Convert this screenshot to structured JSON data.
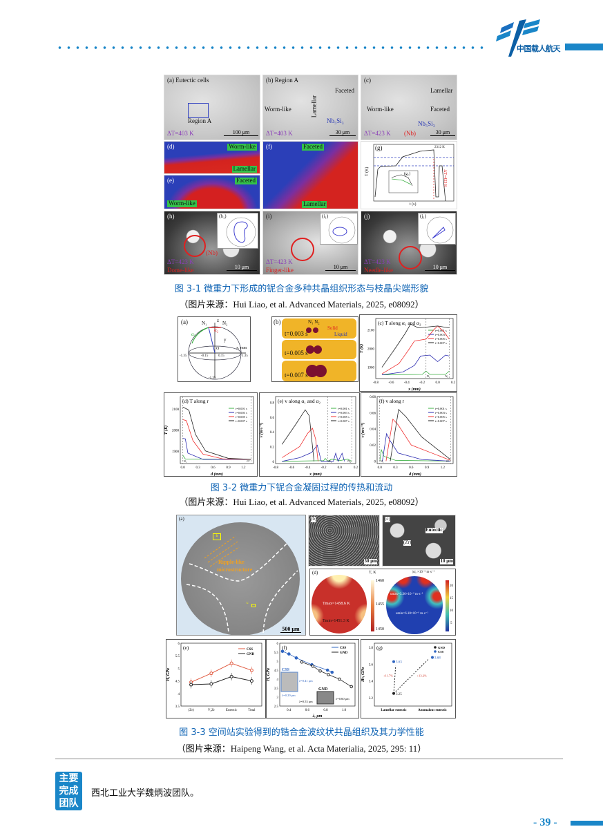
{
  "header": {
    "logo_text": "中国载人航天",
    "colors": {
      "accent": "#1a86c8"
    }
  },
  "fig1": {
    "caption": "图 3-1 微重力下形成的铌合金多种共晶组织形态与枝晶尖端形貌",
    "source": "（图片来源：Hui Liao, et al. Advanced Materials, 2025, e08092）",
    "a": {
      "label": "(a) Eutectic cells",
      "region": "Region A",
      "dt": "ΔT=403 K",
      "scale": "100 μm"
    },
    "b": {
      "label": "(b) Region A",
      "worm": "Worm-like",
      "lamellar": "Lamellar",
      "faceted": "Faceted",
      "phase": "Nb₅Si₃",
      "dt": "ΔT=403 K",
      "scale": "30 μm"
    },
    "c": {
      "label": "(c)",
      "worm": "Worm-like",
      "lamellar": "Lamellar",
      "faceted": "Faceted",
      "phase": "Nb₅Si₃",
      "nb": "(Nb)",
      "dt": "ΔT=423 K",
      "scale": "30 μm"
    },
    "d": {
      "label": "(d)",
      "t1": "Worm-like",
      "t2": "Lamellar"
    },
    "e": {
      "label": "(e)",
      "t1": "Faceted",
      "t2": "Worm-like"
    },
    "f": {
      "label": "(f)",
      "t1": "Faceted",
      "t2": "Lamellar"
    },
    "g": {
      "label": "(g)",
      "inset": "(g₁)",
      "xlabel": "t (s)",
      "ylabel": "T (K)",
      "dt": "ΔT=423 K",
      "tmax": "2312 K",
      "yticks": [
        "2400",
        "2200",
        "2000",
        "1800"
      ],
      "xticks": [
        "0",
        "10",
        "20",
        "30"
      ]
    },
    "h": {
      "label": "(h)",
      "inset": "(h₁)",
      "nb": "(Nb)",
      "dt": "ΔT=423 K",
      "shape": "Dome-like",
      "scale": "10 μm"
    },
    "i": {
      "label": "(i)",
      "inset": "(i₁)",
      "dt": "ΔT=423 K",
      "shape": "Finger-like",
      "scale": "10 μm"
    },
    "j": {
      "label": "(j)",
      "inset": "(j₁)",
      "dt": "ΔT=423 K",
      "shape": "Needle-like",
      "scale": "10 μm"
    }
  },
  "fig2": {
    "caption": "图 3-2 微重力下铌合金凝固过程的传热和流动",
    "source": "（图片来源：Hui Liao, et al. Advanced Materials, 2025, e08092）",
    "a": {
      "label": "(a)",
      "n1": "N₁",
      "n2": "N₂",
      "a1": "α₁",
      "a2": "α₂",
      "o": "O",
      "x": "x, mm",
      "y": "y",
      "z": "z",
      "ticks": [
        "-1.35",
        "-0.15",
        "0.15",
        "1.35",
        "-1.35"
      ]
    },
    "b": {
      "label": "(b)",
      "n": "N₁ N₂",
      "solid": "Solid",
      "liquid": "Liquid",
      "t1": "t=0.003 s",
      "t2": "t=0.005 s",
      "t3": "t=0.007 s"
    },
    "legend": [
      "t=0.001 s",
      "t=0.003 s",
      "t=0.005 s",
      "t=0.007 s"
    ],
    "colors": [
      "#3cb043",
      "#2a2ab0",
      "#f03030",
      "#222222"
    ],
    "chart_data": [
      {
        "type": "line",
        "title": "(c) T along α₁ and α₂",
        "xlabel": "x (mm)",
        "ylabel": "T (K)",
        "xlim": [
          -0.8,
          0.2
        ],
        "ylim": [
          1840,
          2160
        ],
        "xticks": [
          -0.8,
          -0.6,
          -0.4,
          -0.2,
          0.0,
          0.2
        ],
        "yticks": [
          1900,
          2000,
          2100
        ],
        "series": [
          {
            "name": "t=0.001 s",
            "points": [
              [
                -0.72,
                1860
              ],
              [
                -0.2,
                1862
              ],
              [
                -0.15,
                1880
              ],
              [
                -0.1,
                1862
              ],
              [
                0.1,
                1862
              ],
              [
                0.15,
                1880
              ]
            ]
          },
          {
            "name": "t=0.003 s",
            "points": [
              [
                -0.72,
                1860
              ],
              [
                -0.45,
                1875
              ],
              [
                -0.3,
                1910
              ],
              [
                -0.22,
                1960
              ],
              [
                -0.1,
                1965
              ],
              [
                0,
                1930
              ],
              [
                0.1,
                1965
              ],
              [
                0.15,
                1960
              ]
            ]
          },
          {
            "name": "t=0.005 s",
            "points": [
              [
                -0.72,
                1865
              ],
              [
                -0.5,
                1920
              ],
              [
                -0.38,
                1990
              ],
              [
                -0.3,
                2040
              ],
              [
                -0.15,
                2050
              ],
              [
                -0.05,
                2100
              ],
              [
                0,
                2120
              ],
              [
                0.08,
                2090
              ],
              [
                0.15,
                2050
              ]
            ]
          },
          {
            "name": "t=0.007 s",
            "points": [
              [
                -0.72,
                1900
              ],
              [
                -0.55,
                2000
              ],
              [
                -0.42,
                2080
              ],
              [
                -0.35,
                2130
              ],
              [
                -0.25,
                2110
              ],
              [
                0,
                2120
              ],
              [
                0.15,
                2110
              ]
            ]
          }
        ]
      },
      {
        "type": "line",
        "title": "(d) T along r",
        "xlabel": "d (mm)",
        "ylabel": "T (K)",
        "xlim": [
          -0.05,
          1.4
        ],
        "ylim": [
          1840,
          2160
        ],
        "xticks": [
          0.0,
          0.3,
          0.6,
          0.9,
          1.2
        ],
        "yticks": [
          1900,
          2000,
          2100
        ],
        "series": [
          {
            "name": "t=0.001 s",
            "points": [
              [
                0,
                1880
              ],
              [
                0.05,
                1862
              ],
              [
                1.35,
                1860
              ]
            ]
          },
          {
            "name": "t=0.003 s",
            "points": [
              [
                0,
                1960
              ],
              [
                0.05,
                1958
              ],
              [
                0.1,
                1890
              ],
              [
                0.4,
                1860
              ],
              [
                1.35,
                1860
              ]
            ]
          },
          {
            "name": "t=0.005 s",
            "points": [
              [
                0,
                2050
              ],
              [
                0.07,
                2045
              ],
              [
                0.2,
                1950
              ],
              [
                0.4,
                1885
              ],
              [
                0.8,
                1862
              ],
              [
                1.35,
                1860
              ]
            ]
          },
          {
            "name": "t=0.007 s",
            "points": [
              [
                0,
                2110
              ],
              [
                0.12,
                2095
              ],
              [
                0.25,
                1980
              ],
              [
                0.45,
                1900
              ],
              [
                0.9,
                1865
              ],
              [
                1.35,
                1860
              ]
            ]
          }
        ]
      },
      {
        "type": "line",
        "title": "(e) v along α₁ and α₂",
        "xlabel": "x (mm)",
        "ylabel": "v (m·s⁻¹)",
        "xlim": [
          -0.8,
          0.2
        ],
        "ylim": [
          -0.03,
          0.88
        ],
        "xticks": [
          -0.8,
          -0.6,
          -0.4,
          -0.2,
          0.0,
          0.2
        ],
        "yticks": [
          0.0,
          0.2,
          0.4,
          0.6,
          0.8
        ],
        "series": [
          {
            "name": "t=0.001 s",
            "points": [
              [
                -0.72,
                0
              ],
              [
                -0.2,
                0.01
              ],
              [
                -0.18,
                0.04
              ],
              [
                -0.15,
                0
              ],
              [
                -0.1,
                0.03
              ],
              [
                0,
                0.01
              ],
              [
                0.1,
                0.03
              ],
              [
                0.15,
                0
              ]
            ]
          },
          {
            "name": "t=0.003 s",
            "points": [
              [
                -0.72,
                0
              ],
              [
                -0.5,
                0.05
              ],
              [
                -0.35,
                0.12
              ],
              [
                -0.28,
                0.22
              ],
              [
                -0.23,
                0
              ],
              [
                -0.08,
                0
              ],
              [
                -0.05,
                0.11
              ],
              [
                -0.02,
                0
              ],
              [
                0.03,
                0.11
              ],
              [
                0.06,
                0
              ]
            ]
          },
          {
            "name": "t=0.005 s",
            "points": [
              [
                -0.72,
                0.05
              ],
              [
                -0.5,
                0.2
              ],
              [
                -0.4,
                0.38
              ],
              [
                -0.34,
                0.45
              ],
              [
                -0.3,
                0.3
              ],
              [
                -0.27,
                0
              ]
            ]
          },
          {
            "name": "t=0.007 s",
            "points": [
              [
                -0.72,
                0.23
              ],
              [
                -0.55,
                0.5
              ],
              [
                -0.43,
                0.7
              ],
              [
                -0.38,
                0.62
              ],
              [
                -0.32,
                0
              ]
            ]
          }
        ]
      },
      {
        "type": "line",
        "title": "(f) v along r",
        "xlabel": "d (mm)",
        "ylabel": "v (m·s⁻¹)",
        "xlim": [
          -0.05,
          1.4
        ],
        "ylim": [
          -0.003,
          0.08
        ],
        "xticks": [
          0.0,
          0.3,
          0.6,
          0.9,
          1.2
        ],
        "yticks": [
          0.0,
          0.02,
          0.04,
          0.06,
          0.08
        ],
        "series": [
          {
            "name": "t=0.001 s",
            "points": [
              [
                0,
                0
              ],
              [
                0.03,
                0.014
              ],
              [
                0.08,
                0.006
              ],
              [
                0.3,
                0.001
              ],
              [
                1.35,
                0
              ]
            ]
          },
          {
            "name": "t=0.003 s",
            "points": [
              [
                0.05,
                0
              ],
              [
                0.13,
                0.034
              ],
              [
                0.2,
                0.025
              ],
              [
                0.35,
                0.01
              ],
              [
                0.8,
                0.002
              ],
              [
                1.35,
                0
              ]
            ]
          },
          {
            "name": "t=0.005 s",
            "points": [
              [
                0.12,
                0
              ],
              [
                0.25,
                0.052
              ],
              [
                0.35,
                0.045
              ],
              [
                0.6,
                0.02
              ],
              [
                1.35,
                0.001
              ]
            ]
          },
          {
            "name": "t=0.007 s",
            "points": [
              [
                0.2,
                0
              ],
              [
                0.36,
                0.064
              ],
              [
                0.5,
                0.055
              ],
              [
                0.8,
                0.03
              ],
              [
                1.35,
                0.002
              ]
            ]
          }
        ]
      }
    ],
    "annot": {
      "n1": "N₁",
      "n2": "N₂",
      "o": "O'",
      "a1": "α₁",
      "a2": "α₂",
      "r": "r"
    }
  },
  "fig3": {
    "caption": "图 3-3 空间站实验得到的锆合金波纹状共晶组织及其力学性能",
    "source": "（图片来源：Haipeng Wang, et al. Acta Materialia, 2025, 295: 11）",
    "a": {
      "label": "(a)",
      "b": "b",
      "c": "c",
      "ripple": "Ripple-like",
      "micro": "microstructure",
      "scale": "500 μm"
    },
    "b": {
      "label": "(b)",
      "scale": "50 μm"
    },
    "c": {
      "label": "(c)",
      "eutectic": "Eutectic",
      "zr": "(Zr)",
      "scale": "10 μm"
    },
    "d": {
      "label": "(d)",
      "tunit": "T, K",
      "uunit": "|u|, ×10⁻⁶ m·s⁻¹",
      "tmax": "Tmax=1458.6 K",
      "tmin": "Tmin=1451.3 K",
      "umax": "umax=3.36×10⁻³ m·s⁻¹",
      "umin": "umin=6.10×10⁻⁶ m·s⁻¹",
      "tticks": [
        "1460",
        "1455",
        "1450"
      ],
      "uticks": [
        "20",
        "15",
        "10",
        "5"
      ]
    },
    "chart_data": [
      {
        "type": "line",
        "title": "(e)",
        "ylabel": "H, GPa",
        "categories": [
          "(Zr)",
          "V₂Zr",
          "Eutectic",
          "Total"
        ],
        "ylim": [
          3.5,
          6.0
        ],
        "yticks": [
          3.5,
          4.0,
          4.5,
          5.0,
          5.5,
          6.0
        ],
        "series": [
          {
            "name": "CSS",
            "color": "#e05a40",
            "values": [
              4.45,
              4.8,
              5.2,
              4.92
            ]
          },
          {
            "name": "GND",
            "color": "#222222",
            "values": [
              4.35,
              4.38,
              4.67,
              4.5
            ]
          }
        ]
      },
      {
        "type": "scatter",
        "title": "(f)",
        "xlabel": "λ, μm",
        "ylabel": "H, GPa",
        "xlim": [
          0.3,
          1.12
        ],
        "ylim": [
          2.5,
          6.0
        ],
        "xticks": [
          0.4,
          0.6,
          0.8,
          1.0
        ],
        "yticks": [
          2.5,
          3.0,
          3.5,
          4.0,
          4.5,
          5.0,
          5.5,
          6.0
        ],
        "series": [
          {
            "name": "CSS",
            "color": "#2e64c0",
            "points": [
              [
                0.33,
                5.55
              ],
              [
                0.4,
                5.4
              ],
              [
                0.48,
                5.18
              ],
              [
                0.65,
                4.8
              ],
              [
                0.82,
                4.5
              ],
              [
                0.87,
                4.38
              ]
            ]
          },
          {
            "name": "GND",
            "color": "#222222",
            "points": [
              [
                0.54,
                4.95
              ],
              [
                0.66,
                4.72
              ],
              [
                0.74,
                4.45
              ],
              [
                0.83,
                4.25
              ],
              [
                0.95,
                4.0
              ],
              [
                1.08,
                3.58
              ]
            ]
          }
        ],
        "annotations": [
          "CSS",
          "GND",
          "λ=0.29 μm",
          "λ=0.41 μm",
          "λ=0.53 μm",
          "λ=0.60 μm"
        ]
      },
      {
        "type": "scatter",
        "title": "(g)",
        "ylabel": "Hv, GPa",
        "categories": [
          "Lamellar eutectic",
          "Anomalous eutectic"
        ],
        "ylim": [
          3.1,
          3.85
        ],
        "yticks": [
          3.2,
          3.4,
          3.6,
          3.8
        ],
        "series": [
          {
            "name": "GND",
            "color": "#222222",
            "values": [
              3.25,
              null
            ]
          },
          {
            "name": "CSS",
            "color": "#2e64c0",
            "values": [
              3.63,
              3.68
            ]
          }
        ],
        "annotations": [
          "3.25",
          "3.63",
          "3.68",
          "+11.7%",
          "+13.2%"
        ]
      }
    ]
  },
  "footer": {
    "badge": [
      "主要",
      "完成",
      "团队"
    ],
    "team": "西北工业大学魏炳波团队。",
    "page": "- 39 -"
  }
}
